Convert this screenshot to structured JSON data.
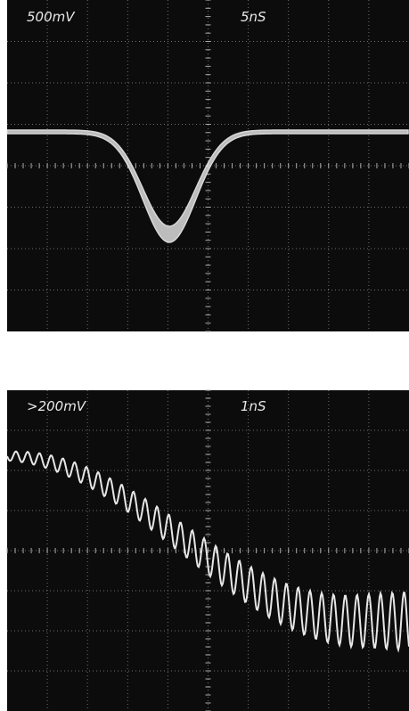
{
  "screens": [
    {
      "volts_per_div": "500mV",
      "time_per_div": "5nS"
    },
    {
      "volts_per_div": ">200mV",
      "time_per_div": "1nS"
    }
  ]
}
